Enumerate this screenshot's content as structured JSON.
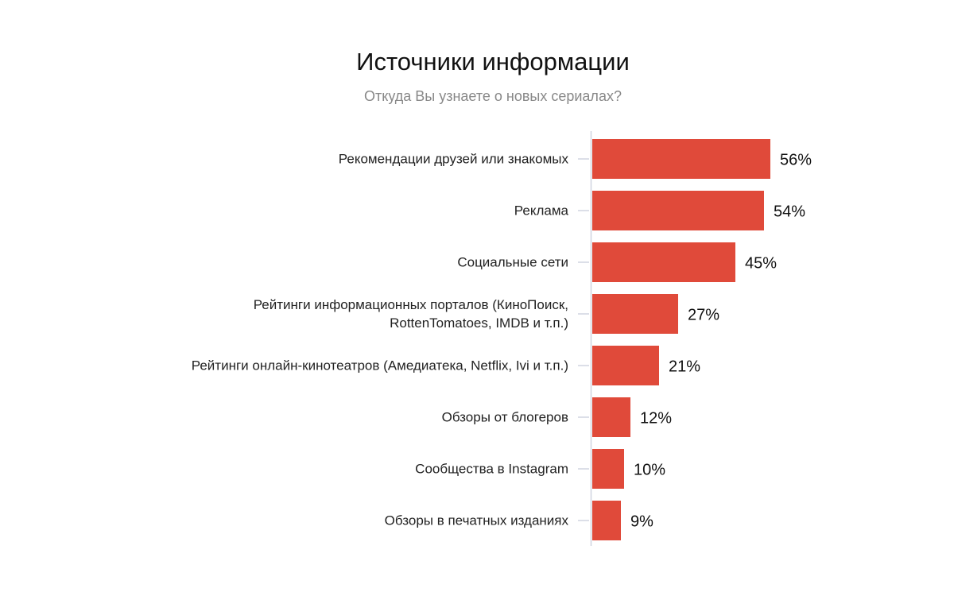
{
  "chart_data": {
    "type": "bar",
    "orientation": "horizontal",
    "title": "Источники информации",
    "subtitle": "Откуда Вы узнаете о новых сериалах?",
    "categories": [
      "Рекомендации друзей или знакомых",
      "Реклама",
      "Социальные сети",
      "Рейтинги информационных порталов (КиноПоиск,\nRottenTomatoes, IMDB и т.п.)",
      "Рейтинги онлайн-кинотеатров (Амедиатека, Netflix, Ivi и т.п.)",
      "Обзоры от блогеров",
      "Сообщества в Instagram",
      "Обзоры в печатных изданиях"
    ],
    "values": [
      56,
      54,
      45,
      27,
      21,
      12,
      10,
      9
    ],
    "value_labels": [
      "56%",
      "54%",
      "45%",
      "27%",
      "21%",
      "12%",
      "10%",
      "9%"
    ],
    "color": "#e04a3a"
  }
}
